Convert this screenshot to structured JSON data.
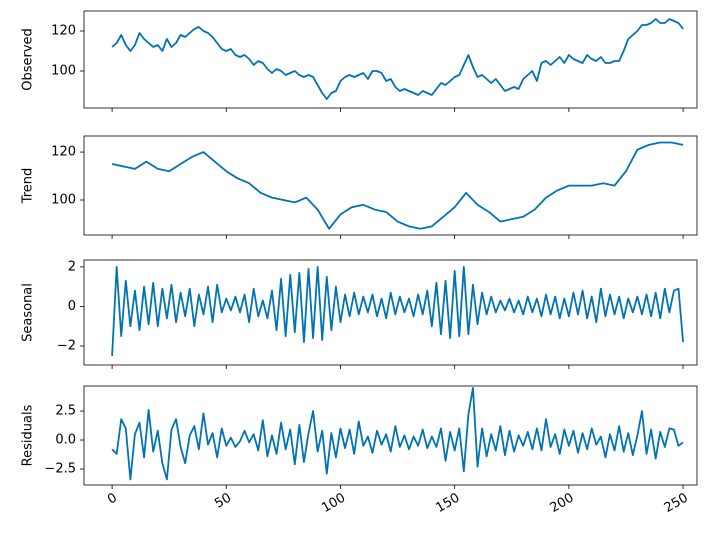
{
  "chart_data": [
    {
      "type": "line",
      "ylabel": "Observed",
      "color": "#0173b2",
      "x": [
        0,
        2,
        4,
        6,
        8,
        10,
        12,
        14,
        16,
        18,
        20,
        22,
        24,
        26,
        28,
        30,
        32,
        34,
        36,
        38,
        40,
        42,
        44,
        46,
        48,
        50,
        52,
        54,
        56,
        58,
        60,
        62,
        64,
        66,
        68,
        70,
        72,
        74,
        76,
        78,
        80,
        82,
        84,
        86,
        88,
        90,
        92,
        94,
        96,
        98,
        100,
        102,
        104,
        106,
        108,
        110,
        112,
        114,
        116,
        118,
        120,
        122,
        124,
        126,
        128,
        130,
        132,
        134,
        136,
        138,
        140,
        142,
        144,
        146,
        148,
        150,
        152,
        154,
        156,
        158,
        160,
        162,
        164,
        166,
        168,
        170,
        172,
        174,
        176,
        178,
        180,
        182,
        184,
        186,
        188,
        190,
        192,
        194,
        196,
        198,
        200,
        202,
        204,
        206,
        208,
        210,
        212,
        214,
        216,
        218,
        220,
        222,
        224,
        226,
        228,
        230,
        232,
        234,
        236,
        238,
        240,
        242,
        244,
        246,
        248,
        250
      ],
      "values": [
        112,
        114,
        118,
        113,
        110,
        113,
        119,
        116,
        114,
        112,
        113,
        110,
        116,
        112,
        114,
        118,
        117,
        119,
        121,
        122,
        120,
        119,
        117,
        114,
        111,
        110,
        111,
        108,
        107,
        108,
        106,
        103,
        105,
        104,
        101,
        99,
        101,
        100,
        98,
        99,
        100,
        98,
        97,
        98,
        97,
        93,
        89,
        86,
        89,
        90,
        95,
        97,
        98,
        97,
        98,
        99,
        96,
        100,
        100,
        99,
        95,
        96,
        92,
        90,
        91,
        90,
        89,
        88,
        90,
        89,
        88,
        91,
        94,
        93,
        95,
        97,
        98,
        103,
        108,
        102,
        97,
        98,
        96,
        94,
        96,
        93,
        90,
        91,
        92,
        91,
        96,
        98,
        100,
        95,
        104,
        105,
        103,
        105,
        107,
        104,
        108,
        106,
        105,
        104,
        108,
        106,
        105,
        107,
        104,
        104,
        105,
        105,
        110,
        116,
        118,
        120,
        123,
        123,
        124,
        126,
        124,
        124,
        126,
        125,
        124,
        121
      ],
      "xlim": [
        -12.3,
        256.1
      ],
      "xticks": [
        0,
        50,
        100,
        150,
        200,
        250
      ],
      "ylim": [
        81.5,
        130
      ],
      "yticks": [
        100,
        120
      ]
    },
    {
      "type": "line",
      "ylabel": "Trend",
      "color": "#0173b2",
      "x": [
        0,
        5,
        10,
        15,
        20,
        25,
        30,
        35,
        40,
        45,
        50,
        55,
        60,
        65,
        70,
        75,
        80,
        85,
        90,
        95,
        100,
        105,
        110,
        115,
        120,
        125,
        130,
        135,
        140,
        145,
        150,
        155,
        160,
        165,
        170,
        175,
        180,
        185,
        190,
        195,
        200,
        205,
        210,
        215,
        220,
        225,
        230,
        235,
        240,
        245,
        250
      ],
      "values": [
        115,
        114,
        113,
        116,
        113,
        112,
        115,
        118,
        120,
        116,
        112,
        109,
        107,
        103,
        101,
        100,
        99,
        101,
        96,
        88,
        94,
        97,
        98,
        96,
        95,
        91,
        89,
        88,
        89,
        93,
        97,
        103,
        98,
        95,
        91,
        92,
        93,
        96,
        101,
        104,
        106,
        106,
        106,
        107,
        106,
        112,
        121,
        123,
        124,
        124,
        123
      ],
      "xlim": [
        -12.3,
        256.1
      ],
      "xticks": [
        0,
        50,
        100,
        150,
        200,
        250
      ],
      "ylim": [
        85.4,
        126.7
      ],
      "yticks": [
        100,
        120
      ]
    },
    {
      "type": "line",
      "ylabel": "Seasonal",
      "color": "#0173b2",
      "x": [
        0,
        2,
        4,
        6,
        8,
        10,
        12,
        14,
        16,
        18,
        20,
        22,
        24,
        26,
        28,
        30,
        32,
        34,
        36,
        38,
        40,
        42,
        44,
        46,
        48,
        50,
        52,
        54,
        56,
        58,
        60,
        62,
        64,
        66,
        68,
        70,
        72,
        74,
        76,
        78,
        80,
        82,
        84,
        86,
        88,
        90,
        92,
        94,
        96,
        98,
        100,
        102,
        104,
        106,
        108,
        110,
        112,
        114,
        116,
        118,
        120,
        122,
        124,
        126,
        128,
        130,
        132,
        134,
        136,
        138,
        140,
        142,
        144,
        146,
        148,
        150,
        152,
        154,
        156,
        158,
        160,
        162,
        164,
        166,
        168,
        170,
        172,
        174,
        176,
        178,
        180,
        182,
        184,
        186,
        188,
        190,
        192,
        194,
        196,
        198,
        200,
        202,
        204,
        206,
        208,
        210,
        212,
        214,
        216,
        218,
        220,
        222,
        224,
        226,
        228,
        230,
        232,
        234,
        236,
        238,
        240,
        242,
        244,
        246,
        248,
        250
      ],
      "values": [
        -2.5,
        2.0,
        -1.5,
        1.3,
        -1.0,
        0.8,
        -1.2,
        1.0,
        -0.9,
        1.2,
        -1.0,
        0.9,
        -0.6,
        1.1,
        -0.8,
        0.7,
        -0.5,
        0.9,
        -1.0,
        0.6,
        -0.4,
        1.0,
        -0.8,
        1.1,
        -0.3,
        0.4,
        -0.2,
        0.5,
        -0.3,
        0.6,
        -0.8,
        0.9,
        -0.5,
        0.3,
        -0.6,
        0.8,
        -1.2,
        1.4,
        -1.5,
        1.6,
        -1.3,
        1.7,
        -1.8,
        1.9,
        -1.6,
        2.0,
        -1.7,
        1.5,
        -1.2,
        1.0,
        -0.8,
        0.6,
        -0.5,
        0.7,
        -0.4,
        0.5,
        -0.3,
        0.6,
        -0.5,
        0.4,
        -0.6,
        0.7,
        -0.4,
        0.5,
        -0.3,
        0.4,
        -0.5,
        0.6,
        -0.4,
        0.8,
        -1.0,
        1.2,
        -1.4,
        1.3,
        -1.6,
        1.8,
        -1.5,
        2.0,
        -1.4,
        1.1,
        -0.9,
        0.7,
        -0.4,
        0.5,
        -0.3,
        0.3,
        -0.2,
        0.4,
        -0.3,
        0.3,
        -0.4,
        0.5,
        -0.3,
        0.4,
        -0.5,
        0.6,
        -0.4,
        0.5,
        -0.6,
        0.4,
        -0.5,
        0.7,
        -0.4,
        0.8,
        -0.6,
        0.5,
        -0.8,
        0.9,
        -0.5,
        0.6,
        -0.4,
        0.5,
        -0.6,
        0.4,
        -0.3,
        0.5,
        -0.4,
        0.6,
        -0.5,
        0.7,
        -0.6,
        0.9,
        -0.3,
        0.8,
        0.9,
        -1.8
      ],
      "xlim": [
        -12.3,
        256.1
      ],
      "xticks": [
        0,
        50,
        100,
        150,
        200,
        250
      ],
      "ylim": [
        -2.96,
        2.35
      ],
      "yticks": [
        {
          "value": -2,
          "label": "−2"
        },
        0,
        2
      ]
    },
    {
      "type": "line",
      "ylabel": "Residuals",
      "color": "#0173b2",
      "x": [
        0,
        2,
        4,
        6,
        8,
        10,
        12,
        14,
        16,
        18,
        20,
        22,
        24,
        26,
        28,
        30,
        32,
        34,
        36,
        38,
        40,
        42,
        44,
        46,
        48,
        50,
        52,
        54,
        56,
        58,
        60,
        62,
        64,
        66,
        68,
        70,
        72,
        74,
        76,
        78,
        80,
        82,
        84,
        86,
        88,
        90,
        92,
        94,
        96,
        98,
        100,
        102,
        104,
        106,
        108,
        110,
        112,
        114,
        116,
        118,
        120,
        122,
        124,
        126,
        128,
        130,
        132,
        134,
        136,
        138,
        140,
        142,
        144,
        146,
        148,
        150,
        152,
        154,
        156,
        158,
        160,
        162,
        164,
        166,
        168,
        170,
        172,
        174,
        176,
        178,
        180,
        182,
        184,
        186,
        188,
        190,
        192,
        194,
        196,
        198,
        200,
        202,
        204,
        206,
        208,
        210,
        212,
        214,
        216,
        218,
        220,
        222,
        224,
        226,
        228,
        230,
        232,
        234,
        236,
        238,
        240,
        242,
        244,
        246,
        248,
        250
      ],
      "values": [
        -0.8,
        -1.2,
        1.8,
        1.0,
        -3.4,
        0.5,
        1.5,
        -1.5,
        2.6,
        -1.0,
        0.8,
        -2.0,
        -3.4,
        0.9,
        1.8,
        -0.6,
        -2.0,
        0.4,
        1.2,
        -0.8,
        2.3,
        -0.4,
        0.6,
        -1.5,
        1.0,
        -0.5,
        0.2,
        -0.6,
        -0.1,
        0.8,
        -0.2,
        0.5,
        -0.9,
        1.7,
        -1.4,
        0.4,
        -1.2,
        1.5,
        -0.8,
        0.9,
        -2.1,
        1.3,
        -1.9,
        0.6,
        2.5,
        -1.0,
        0.8,
        -2.9,
        0.6,
        -1.5,
        1.0,
        -0.7,
        0.9,
        -1.2,
        1.6,
        -0.5,
        0.3,
        -1.1,
        0.8,
        -0.4,
        0.5,
        -1.0,
        1.2,
        -0.6,
        0.4,
        -0.8,
        0.3,
        -0.5,
        0.9,
        -0.7,
        0.3,
        -0.6,
        1.0,
        -1.8,
        0.7,
        -0.9,
        1.0,
        -2.7,
        2.2,
        4.5,
        -2.3,
        1.0,
        -1.4,
        0.5,
        -0.9,
        1.2,
        -1.3,
        0.8,
        -1.0,
        0.4,
        -0.5,
        0.7,
        -0.8,
        1.0,
        -0.9,
        1.8,
        -0.6,
        0.5,
        -1.2,
        0.9,
        -0.5,
        0.8,
        -1.1,
        0.6,
        -0.8,
        1.0,
        -0.4,
        0.3,
        -1.5,
        0.5,
        -0.9,
        1.2,
        -1.0,
        0.6,
        -1.3,
        0.4,
        2.5,
        -1.2,
        0.9,
        -1.6,
        0.7,
        -0.6,
        1.0,
        0.9,
        -0.5,
        -0.2
      ],
      "xlim": [
        -12.3,
        256.1
      ],
      "xticks": [
        0,
        50,
        100,
        150,
        200,
        250
      ],
      "ylim": [
        -3.88,
        4.66
      ],
      "yticks": [
        {
          "value": -2.5,
          "label": "−2.5"
        },
        {
          "value": 0,
          "label": "0.0"
        },
        {
          "value": 2.5,
          "label": "2.5"
        }
      ]
    }
  ]
}
